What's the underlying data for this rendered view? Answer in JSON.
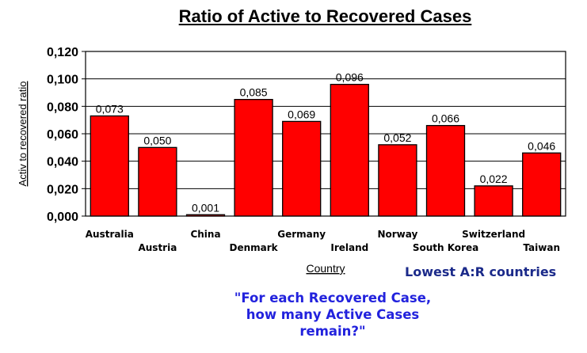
{
  "chart_data": {
    "type": "bar",
    "title": "Ratio of Active to Recovered Cases",
    "xlabel": "Country",
    "ylabel": "Activ to recovered ratio",
    "categories": [
      "Australia",
      "Austria",
      "China",
      "Denmark",
      "Germany",
      "Ireland",
      "Norway",
      "South Korea",
      "Switzerland",
      "Taiwan"
    ],
    "values": [
      0.073,
      0.05,
      0.001,
      0.085,
      0.069,
      0.096,
      0.052,
      0.066,
      0.022,
      0.046
    ],
    "data_labels": [
      "0,073",
      "0,050",
      "0,001",
      "0,085",
      "0,069",
      "0,096",
      "0,052",
      "0,066",
      "0,022",
      "0,046"
    ],
    "ylim": [
      0,
      0.12
    ],
    "yticks": [
      "0,000",
      "0,020",
      "0,040",
      "0,060",
      "0,080",
      "0,100",
      "0,120"
    ],
    "bar_color": "#ff0000",
    "grid": true,
    "legend": "none"
  },
  "annotations": {
    "countries_note": "Lowest A:R countries",
    "caption_lines": [
      "\"For each Recovered Case,",
      "how many Active Cases",
      "remain?\""
    ],
    "note_color": "#1b2a8a",
    "caption_color": "#2222dd"
  }
}
